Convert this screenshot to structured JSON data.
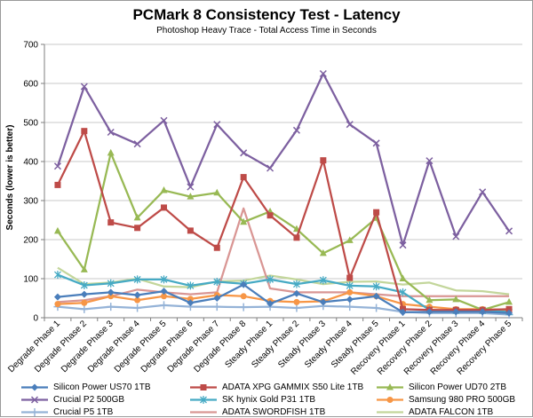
{
  "chart_data": {
    "type": "line",
    "title": "PCMark 8 Consistency Test - Latency",
    "subtitle": "Photoshop Heavy Trace - Total Access Time in Seconds",
    "xlabel": "",
    "ylabel": "Seconds (lower is better)",
    "ylim": [
      0,
      700
    ],
    "yticks": [
      0,
      100,
      200,
      300,
      400,
      500,
      600,
      700
    ],
    "grid": true,
    "legend_position": "bottom",
    "categories": [
      "Degrade Phase 1",
      "Degrade Phase 2",
      "Degrade Phase 3",
      "Degrade Phase 4",
      "Degrade Phase 5",
      "Degrade Phase 6",
      "Degrade Phase 7",
      "Degrade Phase 8",
      "Steady Phase 1",
      "Steady Phase 2",
      "Steady Phase 3",
      "Steady Phase 4",
      "Steady Phase 5",
      "Recovery Phase 1",
      "Recovery Phase 2",
      "Recovery Phase 3",
      "Recovery Phase 4",
      "Recovery Phase 5"
    ],
    "series": [
      {
        "name": "Silicon Power US70 1TB",
        "color": "#4a7ebb",
        "marker": "diamond",
        "values": [
          53,
          60,
          65,
          58,
          68,
          38,
          50,
          85,
          36,
          62,
          40,
          47,
          55,
          14,
          15,
          15,
          15,
          12
        ]
      },
      {
        "name": "ADATA XPG GAMMIX S50 Lite 1TB",
        "color": "#be4b48",
        "marker": "square",
        "values": [
          340,
          478,
          244,
          230,
          282,
          223,
          179,
          360,
          262,
          205,
          403,
          102,
          270,
          22,
          20,
          20,
          20,
          22
        ]
      },
      {
        "name": "Silicon Power UD70 2TB",
        "color": "#98b954",
        "marker": "triangle",
        "values": [
          222,
          123,
          422,
          256,
          326,
          310,
          320,
          245,
          272,
          227,
          165,
          198,
          255,
          100,
          45,
          47,
          20,
          40
        ]
      },
      {
        "name": "Crucial P2 500GB",
        "color": "#7d60a0",
        "marker": "x",
        "values": [
          388,
          592,
          475,
          445,
          505,
          335,
          495,
          422,
          383,
          480,
          625,
          495,
          447,
          186,
          402,
          208,
          322,
          222
        ]
      },
      {
        "name": "SK hynix Gold P31 1TB",
        "color": "#46aac4",
        "marker": "asterisk",
        "values": [
          110,
          83,
          88,
          98,
          98,
          82,
          92,
          87,
          98,
          86,
          96,
          82,
          80,
          65,
          20,
          18,
          18,
          15
        ]
      },
      {
        "name": "Samsung 980 PRO 500GB",
        "color": "#f79646",
        "marker": "circle",
        "values": [
          35,
          38,
          55,
          45,
          55,
          48,
          58,
          55,
          43,
          40,
          42,
          65,
          55,
          35,
          28,
          22,
          22,
          20
        ]
      },
      {
        "name": "Crucial P5 1TB",
        "color": "#95b3d7",
        "marker": "plus",
        "values": [
          28,
          22,
          28,
          25,
          32,
          28,
          28,
          27,
          28,
          25,
          30,
          28,
          25,
          15,
          12,
          12,
          12,
          8
        ]
      },
      {
        "name": "ADATA SWORDFISH 1TB",
        "color": "#d99694",
        "marker": "none",
        "values": [
          40,
          45,
          55,
          72,
          65,
          60,
          65,
          280,
          75,
          65,
          65,
          65,
          60,
          55,
          55,
          55,
          55,
          55
        ]
      },
      {
        "name": "ADATA FALCON 1TB",
        "color": "#c3d69b",
        "marker": "none",
        "values": [
          128,
          86,
          90,
          100,
          80,
          78,
          93,
          95,
          108,
          98,
          86,
          92,
          93,
          85,
          90,
          70,
          68,
          60
        ]
      }
    ]
  }
}
